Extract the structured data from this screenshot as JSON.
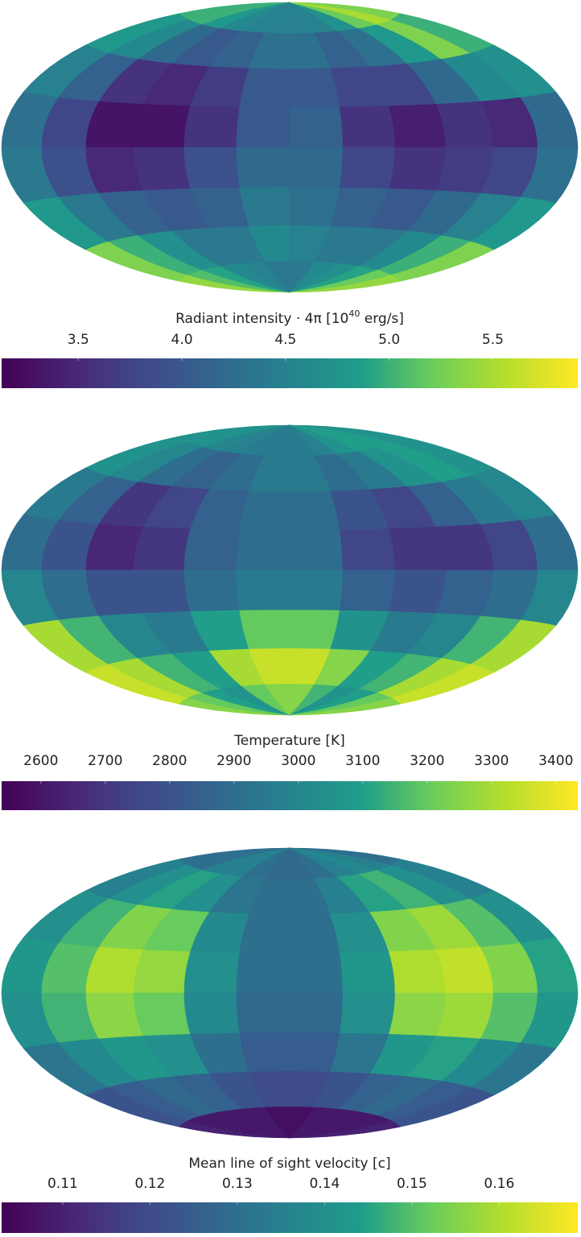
{
  "chart_data": [
    {
      "type": "heatmap",
      "projection": "hammer",
      "colormap": "viridis",
      "colorbar_label": [
        "Radiant intensity · 4π [10",
        "40",
        " erg/s]"
      ],
      "clim": [
        3.13,
        5.91
      ],
      "cticks": [
        3.5,
        {
          "value": 4,
          "label": "4.0"
        },
        4.5,
        {
          "value": 5,
          "label": "5.0"
        },
        5.5
      ],
      "values": [
        [
          5.0,
          5.0,
          4.8,
          4.6,
          4.5,
          4.5,
          4.5,
          4.5,
          4.7,
          5.2,
          5.5,
          5.3
        ],
        [
          4.8,
          4.6,
          4.2,
          4.0,
          4.1,
          4.3,
          4.3,
          4.1,
          4.3,
          4.8,
          5.3,
          5.0
        ],
        [
          4.5,
          4.1,
          3.6,
          3.5,
          3.7,
          4.0,
          4.0,
          3.8,
          3.8,
          4.2,
          4.6,
          4.7
        ],
        [
          4.3,
          3.8,
          3.3,
          3.3,
          3.6,
          4.0,
          4.1,
          3.6,
          3.4,
          3.6,
          3.5,
          4.2
        ],
        [
          4.4,
          3.9,
          3.5,
          3.6,
          3.9,
          4.2,
          4.2,
          3.8,
          3.6,
          3.7,
          3.8,
          4.3
        ],
        [
          4.8,
          4.4,
          4.1,
          4.0,
          4.1,
          4.4,
          4.3,
          4.1,
          4.0,
          4.2,
          4.5,
          4.8
        ],
        [
          5.3,
          5.0,
          4.7,
          4.4,
          4.4,
          4.6,
          4.5,
          4.4,
          4.4,
          4.6,
          5.0,
          5.3
        ],
        [
          5.4,
          5.1,
          4.9,
          4.6,
          4.5,
          4.4,
          4.4,
          4.6,
          4.7,
          4.9,
          5.2,
          5.4
        ]
      ]
    },
    {
      "type": "heatmap",
      "projection": "hammer",
      "colormap": "viridis",
      "colorbar_label": [
        "Temperature [K]"
      ],
      "clim": [
        2539,
        3434
      ],
      "cticks": [
        2600,
        2700,
        2800,
        2900,
        3000,
        3100,
        3200,
        3300,
        3400
      ],
      "values": [
        [
          3050,
          3050,
          3000,
          2980,
          2960,
          2950,
          2960,
          2980,
          3050,
          3100,
          3100,
          3050
        ],
        [
          3050,
          3000,
          2900,
          2850,
          2900,
          2950,
          2950,
          2900,
          2950,
          3050,
          3100,
          3050
        ],
        [
          2950,
          2850,
          2700,
          2750,
          2850,
          2900,
          2900,
          2800,
          2750,
          2850,
          2950,
          3000
        ],
        [
          2900,
          2800,
          2650,
          2700,
          2850,
          2900,
          2900,
          2750,
          2700,
          2700,
          2750,
          2900
        ],
        [
          3000,
          2900,
          2800,
          2800,
          2900,
          2950,
          2950,
          2850,
          2800,
          2850,
          2900,
          3000
        ],
        [
          3300,
          3150,
          3000,
          2950,
          3100,
          3200,
          3200,
          3050,
          2950,
          3000,
          3150,
          3300
        ],
        [
          3350,
          3300,
          3150,
          3100,
          3300,
          3350,
          3350,
          3250,
          3100,
          3150,
          3300,
          3350
        ],
        [
          3250,
          3200,
          3100,
          3050,
          3200,
          3250,
          3250,
          3150,
          3050,
          3100,
          3200,
          3250
        ]
      ]
    },
    {
      "type": "heatmap",
      "projection": "hammer",
      "colormap": "viridis",
      "colorbar_label": [
        "Mean line of sight velocity [c]"
      ],
      "clim": [
        0.103,
        0.169
      ],
      "cticks": [
        0.11,
        0.12,
        0.13,
        0.14,
        0.15,
        0.16
      ],
      "values": [
        [
          0.13,
          0.13,
          0.135,
          0.135,
          0.13,
          0.128,
          0.128,
          0.13,
          0.135,
          0.138,
          0.135,
          0.13
        ],
        [
          0.135,
          0.14,
          0.145,
          0.14,
          0.132,
          0.13,
          0.13,
          0.135,
          0.145,
          0.148,
          0.14,
          0.135
        ],
        [
          0.14,
          0.148,
          0.155,
          0.152,
          0.138,
          0.13,
          0.13,
          0.14,
          0.155,
          0.158,
          0.15,
          0.14
        ],
        [
          0.142,
          0.15,
          0.16,
          0.157,
          0.14,
          0.13,
          0.13,
          0.142,
          0.16,
          0.162,
          0.155,
          0.145
        ],
        [
          0.14,
          0.148,
          0.156,
          0.152,
          0.138,
          0.128,
          0.128,
          0.14,
          0.156,
          0.158,
          0.15,
          0.142
        ],
        [
          0.132,
          0.138,
          0.142,
          0.14,
          0.13,
          0.125,
          0.125,
          0.132,
          0.142,
          0.145,
          0.138,
          0.132
        ],
        [
          0.122,
          0.125,
          0.128,
          0.126,
          0.122,
          0.12,
          0.12,
          0.122,
          0.126,
          0.128,
          0.125,
          0.122
        ],
        [
          0.11,
          0.108,
          0.108,
          0.108,
          0.108,
          0.106,
          0.106,
          0.108,
          0.108,
          0.108,
          0.108,
          0.11
        ]
      ]
    }
  ]
}
